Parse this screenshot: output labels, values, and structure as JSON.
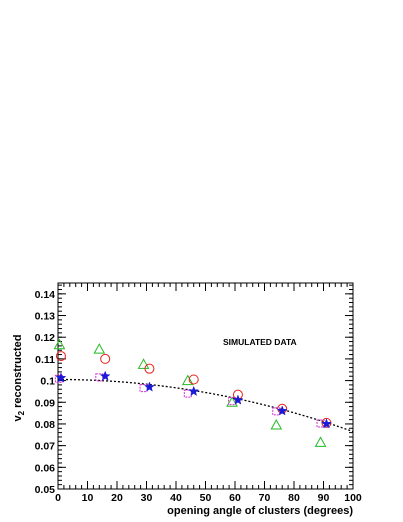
{
  "chart_data": {
    "type": "scatter",
    "xlabel": "opening angle of clusters (degrees)",
    "ylabel_main": "v",
    "ylabel_sub": "2",
    "ylabel_rest": " reconstructed",
    "annotation": "SIMULATED DATA",
    "xlim": [
      0,
      100
    ],
    "ylim": [
      0.05,
      0.145
    ],
    "x_ticks": [
      0,
      10,
      20,
      30,
      40,
      50,
      60,
      70,
      80,
      90,
      100
    ],
    "y_ticks": [
      0.05,
      0.06,
      0.07,
      0.08,
      0.09,
      0.1,
      0.11,
      0.12,
      0.13,
      0.14
    ],
    "y_tick_labels": [
      "0.05",
      "0.06",
      "0.07",
      "0.08",
      "0.09",
      "0.1",
      "0.11",
      "0.12",
      "0.13",
      "0.14"
    ],
    "series": [
      {
        "marker": "triangle",
        "color": "#22bb22",
        "points": [
          [
            0.5,
            0.1165
          ],
          [
            14,
            0.1145
          ],
          [
            29,
            0.1075
          ],
          [
            44,
            0.1
          ],
          [
            59,
            0.09
          ],
          [
            74,
            0.0795
          ],
          [
            89,
            0.0715
          ]
        ]
      },
      {
        "marker": "circle",
        "color": "#e8201a",
        "points": [
          [
            1,
            0.1113
          ],
          [
            16,
            0.11
          ],
          [
            31,
            0.1055
          ],
          [
            46,
            0.1005
          ],
          [
            61,
            0.0935
          ],
          [
            76,
            0.087
          ],
          [
            91,
            0.0805
          ]
        ]
      },
      {
        "marker": "square",
        "color": "#d030d0",
        "points": [
          [
            0.3,
            0.1008
          ],
          [
            14,
            0.1015
          ],
          [
            29,
            0.0965
          ],
          [
            44,
            0.094
          ],
          [
            59,
            0.0905
          ],
          [
            74,
            0.0858
          ],
          [
            89,
            0.0802
          ]
        ]
      },
      {
        "marker": "star",
        "color": "#1a1ad8",
        "points": [
          [
            1,
            0.1012
          ],
          [
            16,
            0.102
          ],
          [
            31,
            0.097
          ],
          [
            46,
            0.095
          ],
          [
            61,
            0.091
          ],
          [
            76,
            0.086
          ],
          [
            91,
            0.08
          ]
        ]
      }
    ],
    "fit_curve": {
      "style": "dotted",
      "color": "#000000",
      "a": 0.1005,
      "b": -2.4e-06
    },
    "grid": false,
    "legend": "none"
  }
}
